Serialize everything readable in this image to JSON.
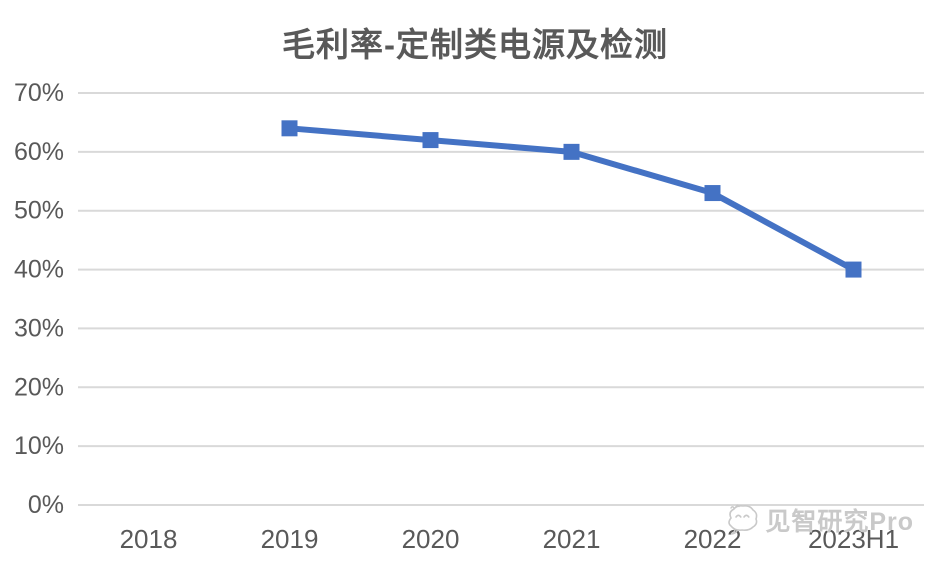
{
  "title": "毛利率-定制类电源及检测",
  "watermark": {
    "logo": "cloud-face-icon",
    "text": "见智研究Pro"
  },
  "chart_data": {
    "type": "line",
    "title": "毛利率-定制类电源及检测",
    "categories": [
      "2018",
      "2019",
      "2020",
      "2021",
      "2022",
      "2023H1"
    ],
    "series": [
      {
        "name": "毛利率-定制类电源及检测",
        "values": [
          null,
          64,
          62,
          60,
          53,
          40
        ],
        "unit": "%",
        "color": "#4472C4",
        "marker": "square"
      }
    ],
    "xlabel": "",
    "ylabel": "",
    "ylim": [
      0,
      70
    ],
    "ytick_step": 10,
    "ytick_labels": [
      "0%",
      "10%",
      "20%",
      "30%",
      "40%",
      "50%",
      "60%",
      "70%"
    ],
    "grid": true,
    "legend_position": "none",
    "gridline_color": "#d9d9d9",
    "text_color": "#595959",
    "background_color": "#ffffff"
  }
}
